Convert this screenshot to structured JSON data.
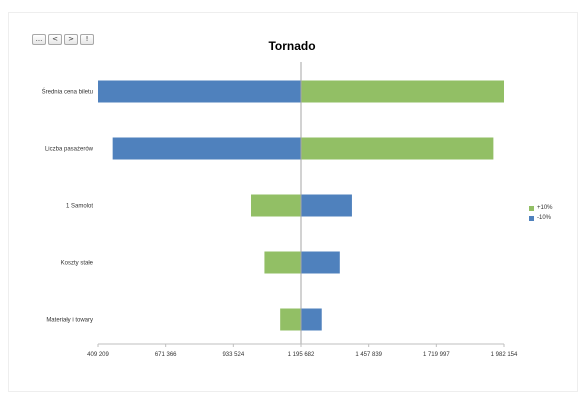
{
  "nav": {
    "buttons": [
      "...",
      "<",
      ">",
      "!"
    ]
  },
  "chart_data": {
    "type": "bar",
    "orientation": "horizontal-tornado",
    "title": "Tornado",
    "base": 1195682,
    "categories": [
      "Średnia cena biletu",
      "Liczba pasażerów",
      "1 Samolot",
      "Koszty stałe",
      "Materiały i towary"
    ],
    "series": [
      {
        "name": "+10%",
        "color": "#92bf65",
        "values": [
          1982154,
          1941000,
          1002000,
          1054000,
          1115000
        ]
      },
      {
        "name": "-10%",
        "color": "#4f81bd",
        "values": [
          409209,
          466000,
          1393000,
          1346000,
          1276000
        ]
      }
    ],
    "xlim": [
      409209,
      1982154
    ],
    "xticks": [
      "409 209",
      "671 366",
      "933 524",
      "1 195 682",
      "1 457 839",
      "1 719 997",
      "1 982 154"
    ],
    "grid": false,
    "legend_position": "right"
  }
}
